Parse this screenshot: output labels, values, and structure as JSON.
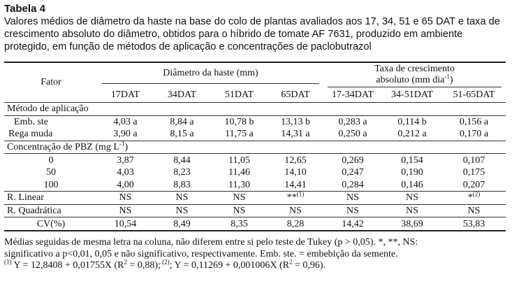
{
  "title": "Tabela 4",
  "caption": "Valores médios de diâmetro da haste na base do colo de plantas avaliados aos 17, 34, 51 e 65 DAT e taxa de crescimento absoluto do diâmetro, obtidos para o híbrido de tomate AF 7631, produzido em ambiente protegido, em função de métodos de aplicação e concentrações de paclobutrazol",
  "header": {
    "fator": "Fator",
    "diametro": "Diâmetro da haste (mm)",
    "taxa_line1": "Taxa de crescimento",
    "taxa_line2": "absoluto (mm dia",
    "taxa_sup": "-1",
    "taxa_close": ")",
    "cols": [
      "17DAT",
      "34DAT",
      "51DAT",
      "65DAT",
      "17-34DAT",
      "34-51DAT",
      "51-65DAT"
    ]
  },
  "sections": {
    "metodo": "Método de aplicação",
    "concentracao": "Concentração de PBZ (mg L",
    "concentracao_sup": "-1",
    "concentracao_close": ")"
  },
  "metodo_rows": [
    {
      "label": "Emb. ste",
      "values": [
        "4,03 a",
        "8,84 a",
        "10,78 b",
        "13,13 b",
        "0,283 a",
        "0,114 b",
        "0,156 a"
      ]
    },
    {
      "label": "Rega muda",
      "values": [
        "3,90 a",
        "8,15 a",
        "11,75 a",
        "14,31 a",
        "0,250 a",
        "0,212 a",
        "0,170 a"
      ]
    }
  ],
  "conc_rows": [
    {
      "label": "0",
      "values": [
        "3,87",
        "8,44",
        "11,05",
        "12,65",
        "0,269",
        "0,154",
        "0,107"
      ]
    },
    {
      "label": "50",
      "values": [
        "4,03",
        "8,23",
        "11,46",
        "14,10",
        "0,247",
        "0,190",
        "0,175"
      ]
    },
    {
      "label": "100",
      "values": [
        "4,00",
        "8,83",
        "11,30",
        "14,41",
        "0,284",
        "0,146",
        "0,207"
      ]
    }
  ],
  "linear": {
    "label": "R. Linear",
    "values": [
      "NS",
      "NS",
      "NS",
      "**",
      "NS",
      "NS",
      "*"
    ],
    "sups": [
      "",
      "",
      "",
      "(1)",
      "",
      "",
      "(2)"
    ]
  },
  "quadratica": {
    "label": "R. Quadrática",
    "values": [
      "NS",
      "NS",
      "NS",
      "NS",
      "NS",
      "NS",
      "NS"
    ]
  },
  "cv": {
    "label": "CV(%)",
    "values": [
      "10,54",
      "8,49",
      "8,35",
      "8,28",
      "14,42",
      "38,69",
      "53,83"
    ]
  },
  "notes": {
    "line1": "Médias seguidas de mesma letra na coluna, não diferem entre si pelo teste de Tukey (p > 0,05). *, **, NS:",
    "line2": "significativo a p<0,01, 0,05 e não significativo, respectivamente. Emb. ste. = embebição da semente.",
    "eq1_mark": "(1)",
    "eq1": " Y = 12,8408 + 0,01755X (R",
    "eq1_sup": "2",
    "eq1_end": " = 0,88);",
    "eq2_mark": " (2)",
    "eq2": "; Y = 0,11269 + 0,001006X (R",
    "eq2_sup": "2",
    "eq2_end": " = 0,96)."
  }
}
